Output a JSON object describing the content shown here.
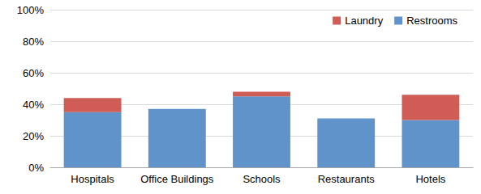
{
  "chart_data": {
    "type": "bar",
    "stacked": true,
    "grid": true,
    "legend": "top-right",
    "categories": [
      "Hospitals",
      "Office Buildings",
      "Schools",
      "Restaurants",
      "Hotels"
    ],
    "series": [
      {
        "name": "Restrooms",
        "color": "#6193cb",
        "values": [
          35,
          37,
          45,
          31,
          30
        ]
      },
      {
        "name": "Laundry",
        "color": "#cf5d55",
        "values": [
          9,
          0,
          3,
          0,
          16
        ]
      }
    ],
    "ylim": [
      0,
      100
    ],
    "yticks": [
      {
        "value": 0,
        "label": "0%"
      },
      {
        "value": 20,
        "label": "20%"
      },
      {
        "value": 40,
        "label": "40%"
      },
      {
        "value": 60,
        "label": "60%"
      },
      {
        "value": 80,
        "label": "80%"
      },
      {
        "value": 100,
        "label": "100%"
      }
    ]
  }
}
